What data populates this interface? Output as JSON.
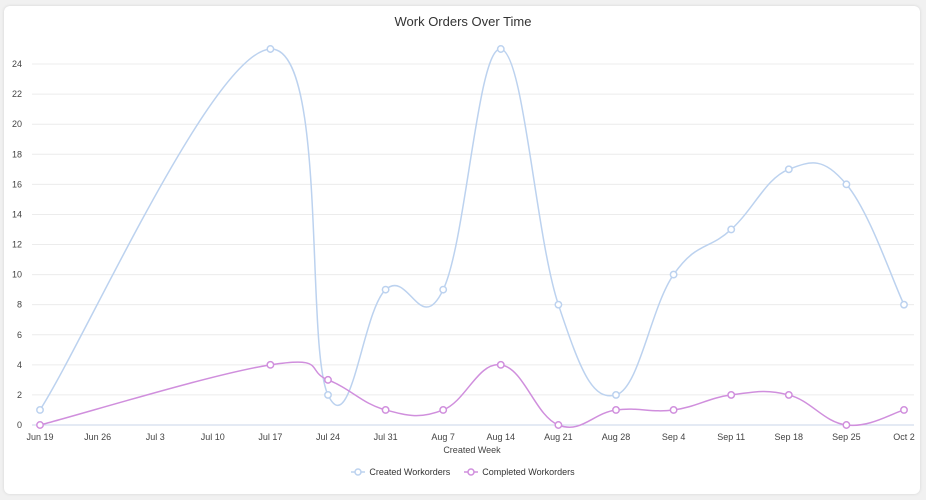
{
  "chart": {
    "title": "Work Orders Over Time",
    "xlabel": "Created Week",
    "legend": [
      {
        "label": "Created Workorders",
        "color": "#bcd2ef"
      },
      {
        "label": "Completed Workorders",
        "color": "#d08fdd"
      }
    ]
  },
  "chart_data": {
    "type": "line",
    "title": "Work Orders Over Time",
    "xlabel": "Created Week",
    "ylabel": "",
    "categories": [
      "Jun 19",
      "Jun 26",
      "Jul 3",
      "Jul 10",
      "Jul 17",
      "Jul 24",
      "Jul 31",
      "Aug 7",
      "Aug 14",
      "Aug 21",
      "Aug 28",
      "Sep 4",
      "Sep 11",
      "Sep 18",
      "Sep 25",
      "Oct 2"
    ],
    "series": [
      {
        "name": "Created Workorders",
        "color": "#bcd2ef",
        "values": [
          1,
          null,
          null,
          null,
          25,
          2,
          9,
          9,
          25,
          8,
          2,
          10,
          13,
          17,
          16,
          8
        ]
      },
      {
        "name": "Completed Workorders",
        "color": "#d08fdd",
        "values": [
          0,
          null,
          null,
          null,
          4,
          3,
          1,
          1,
          4,
          0,
          1,
          1,
          2,
          2,
          0,
          1
        ]
      }
    ],
    "yticks": [
      0,
      2,
      4,
      6,
      8,
      10,
      12,
      14,
      16,
      18,
      20,
      22,
      24
    ],
    "ylim": [
      0,
      25
    ],
    "grid": true,
    "legend_position": "bottom",
    "smooth": true
  }
}
